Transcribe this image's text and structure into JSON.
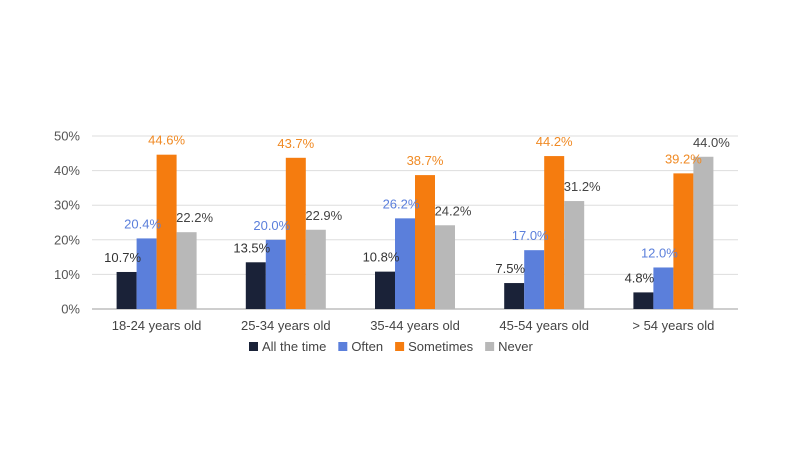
{
  "chart_data": {
    "type": "bar",
    "categories": [
      "18-24 years old",
      "25-34 years old",
      "35-44 years old",
      "45-54 years old",
      "> 54 years old"
    ],
    "series": [
      {
        "name": "All the time",
        "color": "#1a2238",
        "labelColor": "#333333",
        "values": [
          10.7,
          13.5,
          10.8,
          7.5,
          4.8
        ]
      },
      {
        "name": "Often",
        "color": "#5b7fdb",
        "labelColor": "#5b7fdb",
        "values": [
          20.4,
          20.0,
          26.2,
          17.0,
          12.0
        ]
      },
      {
        "name": "Sometimes",
        "color": "#f57c0f",
        "labelColor": "#f08a24",
        "values": [
          44.6,
          43.7,
          38.7,
          44.2,
          39.2
        ]
      },
      {
        "name": "Never",
        "color": "#b8b8b8",
        "labelColor": "#444444",
        "values": [
          22.2,
          22.9,
          24.2,
          31.2,
          44.0
        ]
      }
    ],
    "value_labels": [
      [
        "10.7%",
        "20.4%",
        "44.6%",
        "22.2%"
      ],
      [
        "13.5%",
        "20.0%",
        "43.7%",
        "22.9%"
      ],
      [
        "10.8%",
        "26.2%",
        "38.7%",
        "24.2%"
      ],
      [
        "7.5%",
        "17.0%",
        "44.2%",
        "31.2%"
      ],
      [
        "4.8%",
        "12.0%",
        "39.2%",
        "44.0%"
      ]
    ],
    "yticks": [
      "0%",
      "10%",
      "20%",
      "30%",
      "40%",
      "50%"
    ],
    "ylim": [
      0,
      50
    ],
    "title": "",
    "xlabel": "",
    "ylabel": "",
    "grid": true,
    "legend_position": "bottom"
  }
}
